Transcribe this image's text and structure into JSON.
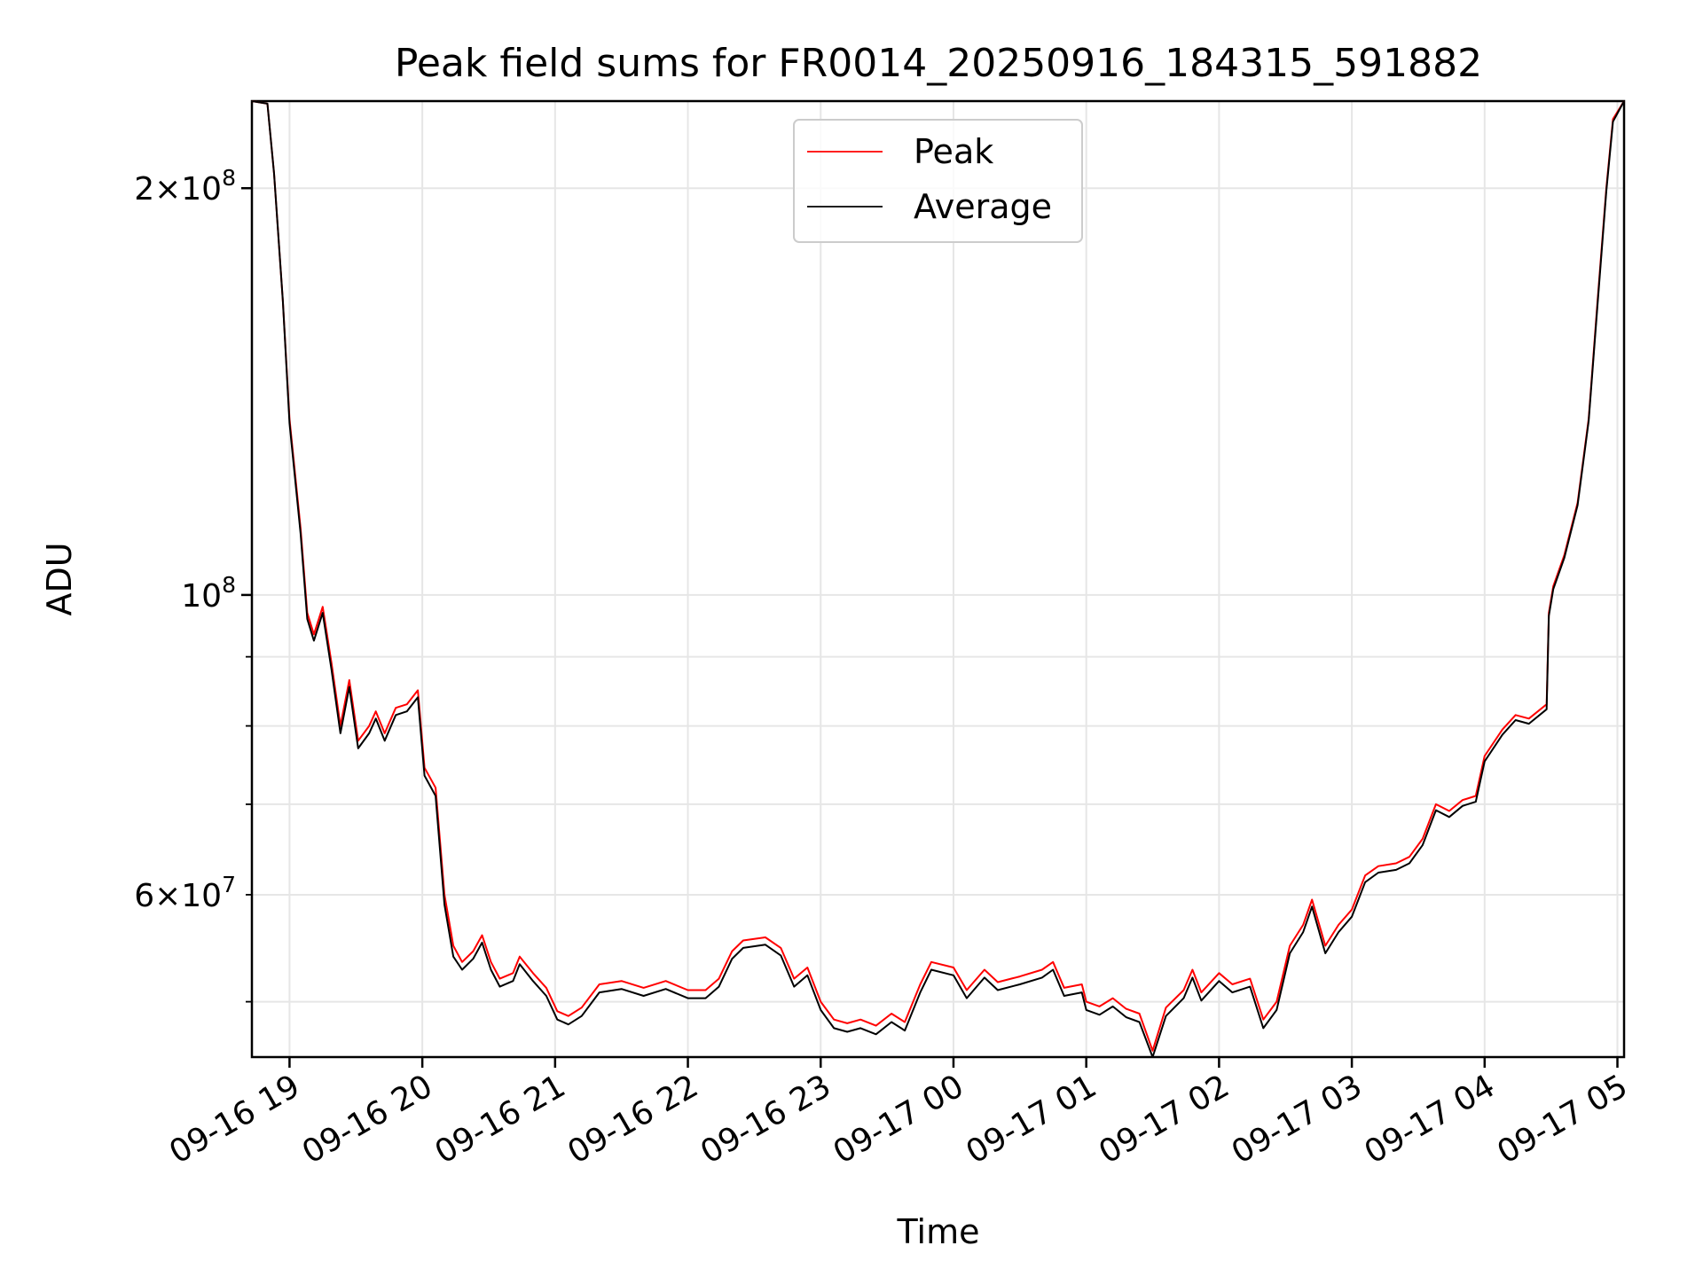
{
  "chart_data": {
    "type": "line",
    "title": "Peak field sums for FR0014_20250916_184315_591882",
    "xlabel": "Time",
    "ylabel": "ADU",
    "yscale": "log",
    "xlim": [
      "2025-09-16 18:43",
      "2025-09-17 05:03"
    ],
    "ylim": [
      45500000,
      232000000
    ],
    "x_ticks": [
      "2025-09-16 19:00",
      "2025-09-16 20:00",
      "2025-09-16 21:00",
      "2025-09-16 22:00",
      "2025-09-16 23:00",
      "2025-09-17 00:00",
      "2025-09-17 01:00",
      "2025-09-17 02:00",
      "2025-09-17 03:00",
      "2025-09-17 04:00",
      "2025-09-17 05:00"
    ],
    "x_tick_labels": [
      "09-16 19",
      "09-16 20",
      "09-16 21",
      "09-16 22",
      "09-16 23",
      "09-17 00",
      "09-17 01",
      "09-17 02",
      "09-17 03",
      "09-17 04",
      "09-17 05"
    ],
    "y_major_ticks": [
      100000000,
      200000000
    ],
    "y_minor_ticks": [
      50000000,
      60000000,
      70000000,
      80000000,
      90000000
    ],
    "y_tick_labels": [
      {
        "value": 200000000,
        "mantissa": "2",
        "exponent": "8"
      },
      {
        "value": 100000000,
        "mantissa": "",
        "exponent": "8"
      },
      {
        "value": 60000000,
        "mantissa": "6",
        "exponent": "7"
      }
    ],
    "grid": true,
    "legend_position": "top-center",
    "series": [
      {
        "name": "Peak",
        "color": "#ff0000",
        "points": [
          [
            "2025-09-16 18:43",
            232000000
          ],
          [
            "2025-09-16 18:50",
            231000000
          ],
          [
            "2025-09-16 18:53",
            205000000
          ],
          [
            "2025-09-16 18:57",
            165000000
          ],
          [
            "2025-09-16 19:00",
            135000000
          ],
          [
            "2025-09-16 19:05",
            112000000
          ],
          [
            "2025-09-16 19:08",
            97000000
          ],
          [
            "2025-09-16 19:11",
            93500000
          ],
          [
            "2025-09-16 19:15",
            98000000
          ],
          [
            "2025-09-16 19:19",
            89000000
          ],
          [
            "2025-09-16 19:23",
            80000000
          ],
          [
            "2025-09-16 19:27",
            86500000
          ],
          [
            "2025-09-16 19:31",
            78000000
          ],
          [
            "2025-09-16 19:36",
            80000000
          ],
          [
            "2025-09-16 19:39",
            82000000
          ],
          [
            "2025-09-16 19:43",
            79000000
          ],
          [
            "2025-09-16 19:48",
            82500000
          ],
          [
            "2025-09-16 19:53",
            83000000
          ],
          [
            "2025-09-16 19:58",
            85000000
          ],
          [
            "2025-09-16 20:01",
            74500000
          ],
          [
            "2025-09-16 20:06",
            72000000
          ],
          [
            "2025-09-16 20:10",
            60000000
          ],
          [
            "2025-09-16 20:14",
            55000000
          ],
          [
            "2025-09-16 20:18",
            53500000
          ],
          [
            "2025-09-16 20:23",
            54500000
          ],
          [
            "2025-09-16 20:27",
            56000000
          ],
          [
            "2025-09-16 20:31",
            53500000
          ],
          [
            "2025-09-16 20:35",
            52000000
          ],
          [
            "2025-09-16 20:41",
            52500000
          ],
          [
            "2025-09-16 20:44",
            54000000
          ],
          [
            "2025-09-16 20:50",
            52500000
          ],
          [
            "2025-09-16 20:56",
            51200000
          ],
          [
            "2025-09-16 21:01",
            49200000
          ],
          [
            "2025-09-16 21:06",
            48800000
          ],
          [
            "2025-09-16 21:12",
            49500000
          ],
          [
            "2025-09-16 21:20",
            51500000
          ],
          [
            "2025-09-16 21:30",
            51800000
          ],
          [
            "2025-09-16 21:40",
            51200000
          ],
          [
            "2025-09-16 21:50",
            51800000
          ],
          [
            "2025-09-16 22:00",
            51000000
          ],
          [
            "2025-09-16 22:08",
            51000000
          ],
          [
            "2025-09-16 22:14",
            52000000
          ],
          [
            "2025-09-16 22:20",
            54500000
          ],
          [
            "2025-09-16 22:25",
            55500000
          ],
          [
            "2025-09-16 22:35",
            55800000
          ],
          [
            "2025-09-16 22:42",
            54800000
          ],
          [
            "2025-09-16 22:48",
            52000000
          ],
          [
            "2025-09-16 22:54",
            53000000
          ],
          [
            "2025-09-16 23:00",
            50000000
          ],
          [
            "2025-09-16 23:06",
            48500000
          ],
          [
            "2025-09-16 23:12",
            48200000
          ],
          [
            "2025-09-16 23:18",
            48500000
          ],
          [
            "2025-09-16 23:25",
            48000000
          ],
          [
            "2025-09-16 23:32",
            49000000
          ],
          [
            "2025-09-16 23:38",
            48300000
          ],
          [
            "2025-09-16 23:45",
            51500000
          ],
          [
            "2025-09-16 23:50",
            53500000
          ],
          [
            "2025-09-17 00:00",
            53000000
          ],
          [
            "2025-09-17 00:06",
            51000000
          ],
          [
            "2025-09-17 00:14",
            52800000
          ],
          [
            "2025-09-17 00:20",
            51700000
          ],
          [
            "2025-09-17 00:30",
            52200000
          ],
          [
            "2025-09-17 00:40",
            52800000
          ],
          [
            "2025-09-17 00:45",
            53500000
          ],
          [
            "2025-09-17 00:50",
            51200000
          ],
          [
            "2025-09-17 00:58",
            51500000
          ],
          [
            "2025-09-17 01:00",
            50000000
          ],
          [
            "2025-09-17 01:06",
            49600000
          ],
          [
            "2025-09-17 01:12",
            50300000
          ],
          [
            "2025-09-17 01:18",
            49400000
          ],
          [
            "2025-09-17 01:24",
            49000000
          ],
          [
            "2025-09-17 01:30",
            46000000
          ],
          [
            "2025-09-17 01:36",
            49500000
          ],
          [
            "2025-09-17 01:44",
            51000000
          ],
          [
            "2025-09-17 01:48",
            52800000
          ],
          [
            "2025-09-17 01:52",
            50800000
          ],
          [
            "2025-09-17 02:00",
            52500000
          ],
          [
            "2025-09-17 02:06",
            51500000
          ],
          [
            "2025-09-17 02:14",
            52000000
          ],
          [
            "2025-09-17 02:20",
            48500000
          ],
          [
            "2025-09-17 02:26",
            50000000
          ],
          [
            "2025-09-17 02:32",
            55000000
          ],
          [
            "2025-09-17 02:38",
            57000000
          ],
          [
            "2025-09-17 02:42",
            59500000
          ],
          [
            "2025-09-17 02:48",
            55000000
          ],
          [
            "2025-09-17 02:54",
            57000000
          ],
          [
            "2025-09-17 03:00",
            58500000
          ],
          [
            "2025-09-17 03:06",
            62000000
          ],
          [
            "2025-09-17 03:12",
            63000000
          ],
          [
            "2025-09-17 03:20",
            63300000
          ],
          [
            "2025-09-17 03:26",
            64000000
          ],
          [
            "2025-09-17 03:32",
            66000000
          ],
          [
            "2025-09-17 03:38",
            70000000
          ],
          [
            "2025-09-17 03:44",
            69200000
          ],
          [
            "2025-09-17 03:50",
            70500000
          ],
          [
            "2025-09-17 03:56",
            71000000
          ],
          [
            "2025-09-17 04:00",
            76000000
          ],
          [
            "2025-09-17 04:08",
            79500000
          ],
          [
            "2025-09-17 04:14",
            81500000
          ],
          [
            "2025-09-17 04:20",
            81000000
          ],
          [
            "2025-09-17 04:28",
            83000000
          ],
          [
            "2025-09-17 04:29",
            97000000
          ],
          [
            "2025-09-17 04:31",
            101500000
          ],
          [
            "2025-09-17 04:36",
            107000000
          ],
          [
            "2025-09-17 04:42",
            117000000
          ],
          [
            "2025-09-17 04:47",
            135000000
          ],
          [
            "2025-09-17 04:51",
            165000000
          ],
          [
            "2025-09-17 04:55",
            200000000
          ],
          [
            "2025-09-17 04:58",
            225000000
          ],
          [
            "2025-09-17 05:03",
            232000000
          ]
        ]
      },
      {
        "name": "Average",
        "color": "#000000",
        "points": [
          [
            "2025-09-16 18:43",
            232000000
          ],
          [
            "2025-09-16 18:50",
            231000000
          ],
          [
            "2025-09-16 18:53",
            205000000
          ],
          [
            "2025-09-16 18:57",
            165000000
          ],
          [
            "2025-09-16 19:00",
            134000000
          ],
          [
            "2025-09-16 19:05",
            111000000
          ],
          [
            "2025-09-16 19:08",
            96000000
          ],
          [
            "2025-09-16 19:11",
            92500000
          ],
          [
            "2025-09-16 19:15",
            97000000
          ],
          [
            "2025-09-16 19:19",
            88000000
          ],
          [
            "2025-09-16 19:23",
            79000000
          ],
          [
            "2025-09-16 19:27",
            85500000
          ],
          [
            "2025-09-16 19:31",
            77000000
          ],
          [
            "2025-09-16 19:36",
            79000000
          ],
          [
            "2025-09-16 19:39",
            81000000
          ],
          [
            "2025-09-16 19:43",
            78000000
          ],
          [
            "2025-09-16 19:48",
            81500000
          ],
          [
            "2025-09-16 19:53",
            82000000
          ],
          [
            "2025-09-16 19:58",
            84000000
          ],
          [
            "2025-09-16 20:01",
            73500000
          ],
          [
            "2025-09-16 20:06",
            71000000
          ],
          [
            "2025-09-16 20:10",
            59000000
          ],
          [
            "2025-09-16 20:14",
            54000000
          ],
          [
            "2025-09-16 20:18",
            52800000
          ],
          [
            "2025-09-16 20:23",
            53800000
          ],
          [
            "2025-09-16 20:27",
            55300000
          ],
          [
            "2025-09-16 20:31",
            52800000
          ],
          [
            "2025-09-16 20:35",
            51300000
          ],
          [
            "2025-09-16 20:41",
            51800000
          ],
          [
            "2025-09-16 20:44",
            53300000
          ],
          [
            "2025-09-16 20:50",
            51800000
          ],
          [
            "2025-09-16 20:56",
            50500000
          ],
          [
            "2025-09-16 21:01",
            48500000
          ],
          [
            "2025-09-16 21:06",
            48100000
          ],
          [
            "2025-09-16 21:12",
            48800000
          ],
          [
            "2025-09-16 21:20",
            50800000
          ],
          [
            "2025-09-16 21:30",
            51100000
          ],
          [
            "2025-09-16 21:40",
            50500000
          ],
          [
            "2025-09-16 21:50",
            51100000
          ],
          [
            "2025-09-16 22:00",
            50300000
          ],
          [
            "2025-09-16 22:08",
            50300000
          ],
          [
            "2025-09-16 22:14",
            51300000
          ],
          [
            "2025-09-16 22:20",
            53800000
          ],
          [
            "2025-09-16 22:25",
            54800000
          ],
          [
            "2025-09-16 22:35",
            55100000
          ],
          [
            "2025-09-16 22:42",
            54100000
          ],
          [
            "2025-09-16 22:48",
            51300000
          ],
          [
            "2025-09-16 22:54",
            52300000
          ],
          [
            "2025-09-16 23:00",
            49300000
          ],
          [
            "2025-09-16 23:06",
            47800000
          ],
          [
            "2025-09-16 23:12",
            47500000
          ],
          [
            "2025-09-16 23:18",
            47800000
          ],
          [
            "2025-09-16 23:25",
            47300000
          ],
          [
            "2025-09-16 23:32",
            48300000
          ],
          [
            "2025-09-16 23:38",
            47600000
          ],
          [
            "2025-09-16 23:45",
            50800000
          ],
          [
            "2025-09-16 23:50",
            52800000
          ],
          [
            "2025-09-17 00:00",
            52300000
          ],
          [
            "2025-09-17 00:06",
            50300000
          ],
          [
            "2025-09-17 00:14",
            52100000
          ],
          [
            "2025-09-17 00:20",
            51000000
          ],
          [
            "2025-09-17 00:30",
            51500000
          ],
          [
            "2025-09-17 00:40",
            52100000
          ],
          [
            "2025-09-17 00:45",
            52800000
          ],
          [
            "2025-09-17 00:50",
            50500000
          ],
          [
            "2025-09-17 00:58",
            50800000
          ],
          [
            "2025-09-17 01:00",
            49300000
          ],
          [
            "2025-09-17 01:06",
            48900000
          ],
          [
            "2025-09-17 01:12",
            49600000
          ],
          [
            "2025-09-17 01:18",
            48700000
          ],
          [
            "2025-09-17 01:24",
            48300000
          ],
          [
            "2025-09-17 01:30",
            45500000
          ],
          [
            "2025-09-17 01:36",
            48800000
          ],
          [
            "2025-09-17 01:44",
            50300000
          ],
          [
            "2025-09-17 01:48",
            52100000
          ],
          [
            "2025-09-17 01:52",
            50100000
          ],
          [
            "2025-09-17 02:00",
            51800000
          ],
          [
            "2025-09-17 02:06",
            50800000
          ],
          [
            "2025-09-17 02:14",
            51300000
          ],
          [
            "2025-09-17 02:20",
            47800000
          ],
          [
            "2025-09-17 02:26",
            49300000
          ],
          [
            "2025-09-17 02:32",
            54300000
          ],
          [
            "2025-09-17 02:38",
            56300000
          ],
          [
            "2025-09-17 02:42",
            58800000
          ],
          [
            "2025-09-17 02:48",
            54300000
          ],
          [
            "2025-09-17 02:54",
            56300000
          ],
          [
            "2025-09-17 03:00",
            57800000
          ],
          [
            "2025-09-17 03:06",
            61300000
          ],
          [
            "2025-09-17 03:12",
            62300000
          ],
          [
            "2025-09-17 03:20",
            62600000
          ],
          [
            "2025-09-17 03:26",
            63300000
          ],
          [
            "2025-09-17 03:32",
            65300000
          ],
          [
            "2025-09-17 03:38",
            69300000
          ],
          [
            "2025-09-17 03:44",
            68500000
          ],
          [
            "2025-09-17 03:50",
            69800000
          ],
          [
            "2025-09-17 03:56",
            70300000
          ],
          [
            "2025-09-17 04:00",
            75300000
          ],
          [
            "2025-09-17 04:08",
            78800000
          ],
          [
            "2025-09-17 04:14",
            80800000
          ],
          [
            "2025-09-17 04:20",
            80300000
          ],
          [
            "2025-09-17 04:28",
            82300000
          ],
          [
            "2025-09-17 04:29",
            96500000
          ],
          [
            "2025-09-17 04:31",
            101000000
          ],
          [
            "2025-09-17 04:36",
            106500000
          ],
          [
            "2025-09-17 04:42",
            116500000
          ],
          [
            "2025-09-17 04:47",
            134500000
          ],
          [
            "2025-09-17 04:51",
            164000000
          ],
          [
            "2025-09-17 04:55",
            199000000
          ],
          [
            "2025-09-17 04:58",
            224000000
          ],
          [
            "2025-09-17 05:03",
            232000000
          ]
        ]
      }
    ]
  }
}
